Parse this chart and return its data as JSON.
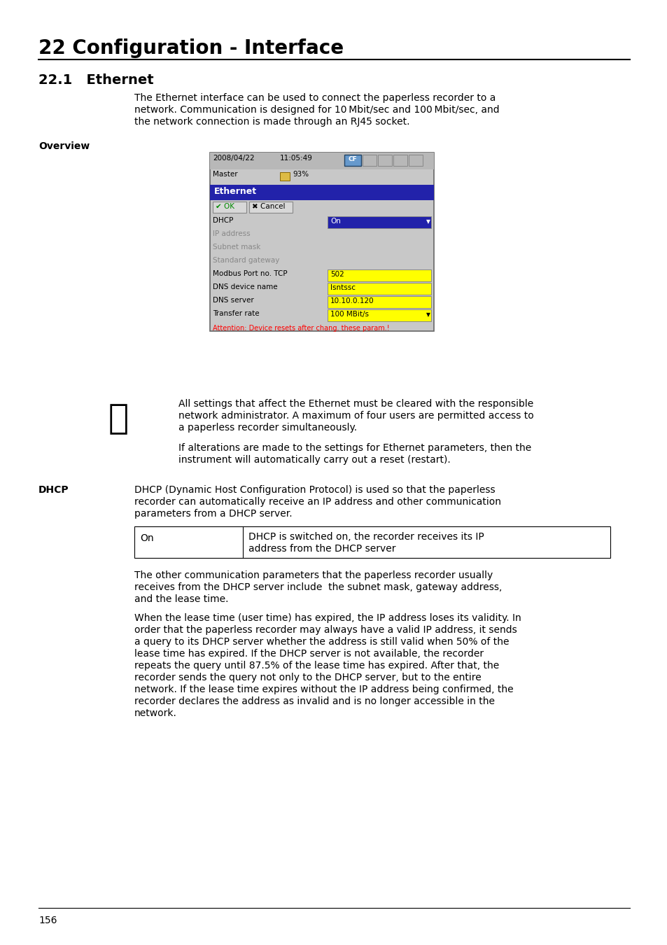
{
  "title": "22 Configuration - Interface",
  "section": "22.1   Ethernet",
  "bg_color": "#ffffff",
  "intro_text_lines": [
    "The Ethernet interface can be used to connect the paperless recorder to a",
    "network. Communication is designed for 10 Mbit/sec and 100 Mbit/sec, and",
    "the network connection is made through an RJ45 socket."
  ],
  "overview_label": "Overview",
  "note_text1_lines": [
    "All settings that affect the Ethernet must be cleared with the responsible",
    "network administrator. A maximum of four users are permitted access to",
    "a paperless recorder simultaneously."
  ],
  "note_text2_lines": [
    "If alterations are made to the settings for Ethernet parameters, then the",
    "instrument will automatically carry out a reset (restart)."
  ],
  "dhcp_label": "DHCP",
  "dhcp_intro_lines": [
    "DHCP (Dynamic Host Configuration Protocol) is used so that the paperless",
    "recorder can automatically receive an IP address and other communication",
    "parameters from a DHCP server."
  ],
  "dhcp_table_col1": "On",
  "dhcp_table_col2_lines": [
    "DHCP is switched on, the recorder receives its IP",
    "address from the DHCP server"
  ],
  "dhcp_para_lines": [
    "The other communication parameters that the paperless recorder usually",
    "receives from the DHCP server include  the subnet mask, gateway address,",
    "and the lease time."
  ],
  "dhcp_para2_lines": [
    "When the lease time (user time) has expired, the IP address loses its validity. In",
    "order that the paperless recorder may always have a valid IP address, it sends",
    "a query to its DHCP server whether the address is still valid when 50% of the",
    "lease time has expired. If the DHCP server is not available, the recorder",
    "repeats the query until 87.5% of the lease time has expired. After that, the",
    "recorder sends the query not only to the DHCP server, but to the entire",
    "network. If the lease time expires without the IP address being confirmed, the",
    "recorder declares the address as invalid and is no longer accessible in the",
    "network."
  ],
  "page_number": "156",
  "screen_date": "2008/04/22",
  "screen_time": "11:05:49",
  "screen_user": "Master",
  "screen_battery": "93%",
  "screen_title_bar": "Ethernet",
  "screen_dhcp_label": "DHCP",
  "screen_dhcp_value": "On",
  "screen_ip": "IP address",
  "screen_subnet": "Subnet mask",
  "screen_gateway": "Standard gateway",
  "screen_modbus": "Modbus Port no. TCP",
  "screen_modbus_val": "502",
  "screen_dns_name": "DNS device name",
  "screen_dns_name_val": "lsntssc",
  "screen_dns_server": "DNS server",
  "screen_dns_server_val": "10.10.0.120",
  "screen_transfer": "Transfer rate",
  "screen_transfer_val": "100 MBit/s",
  "screen_warning": "Attention: Device resets after chang. these param.!"
}
